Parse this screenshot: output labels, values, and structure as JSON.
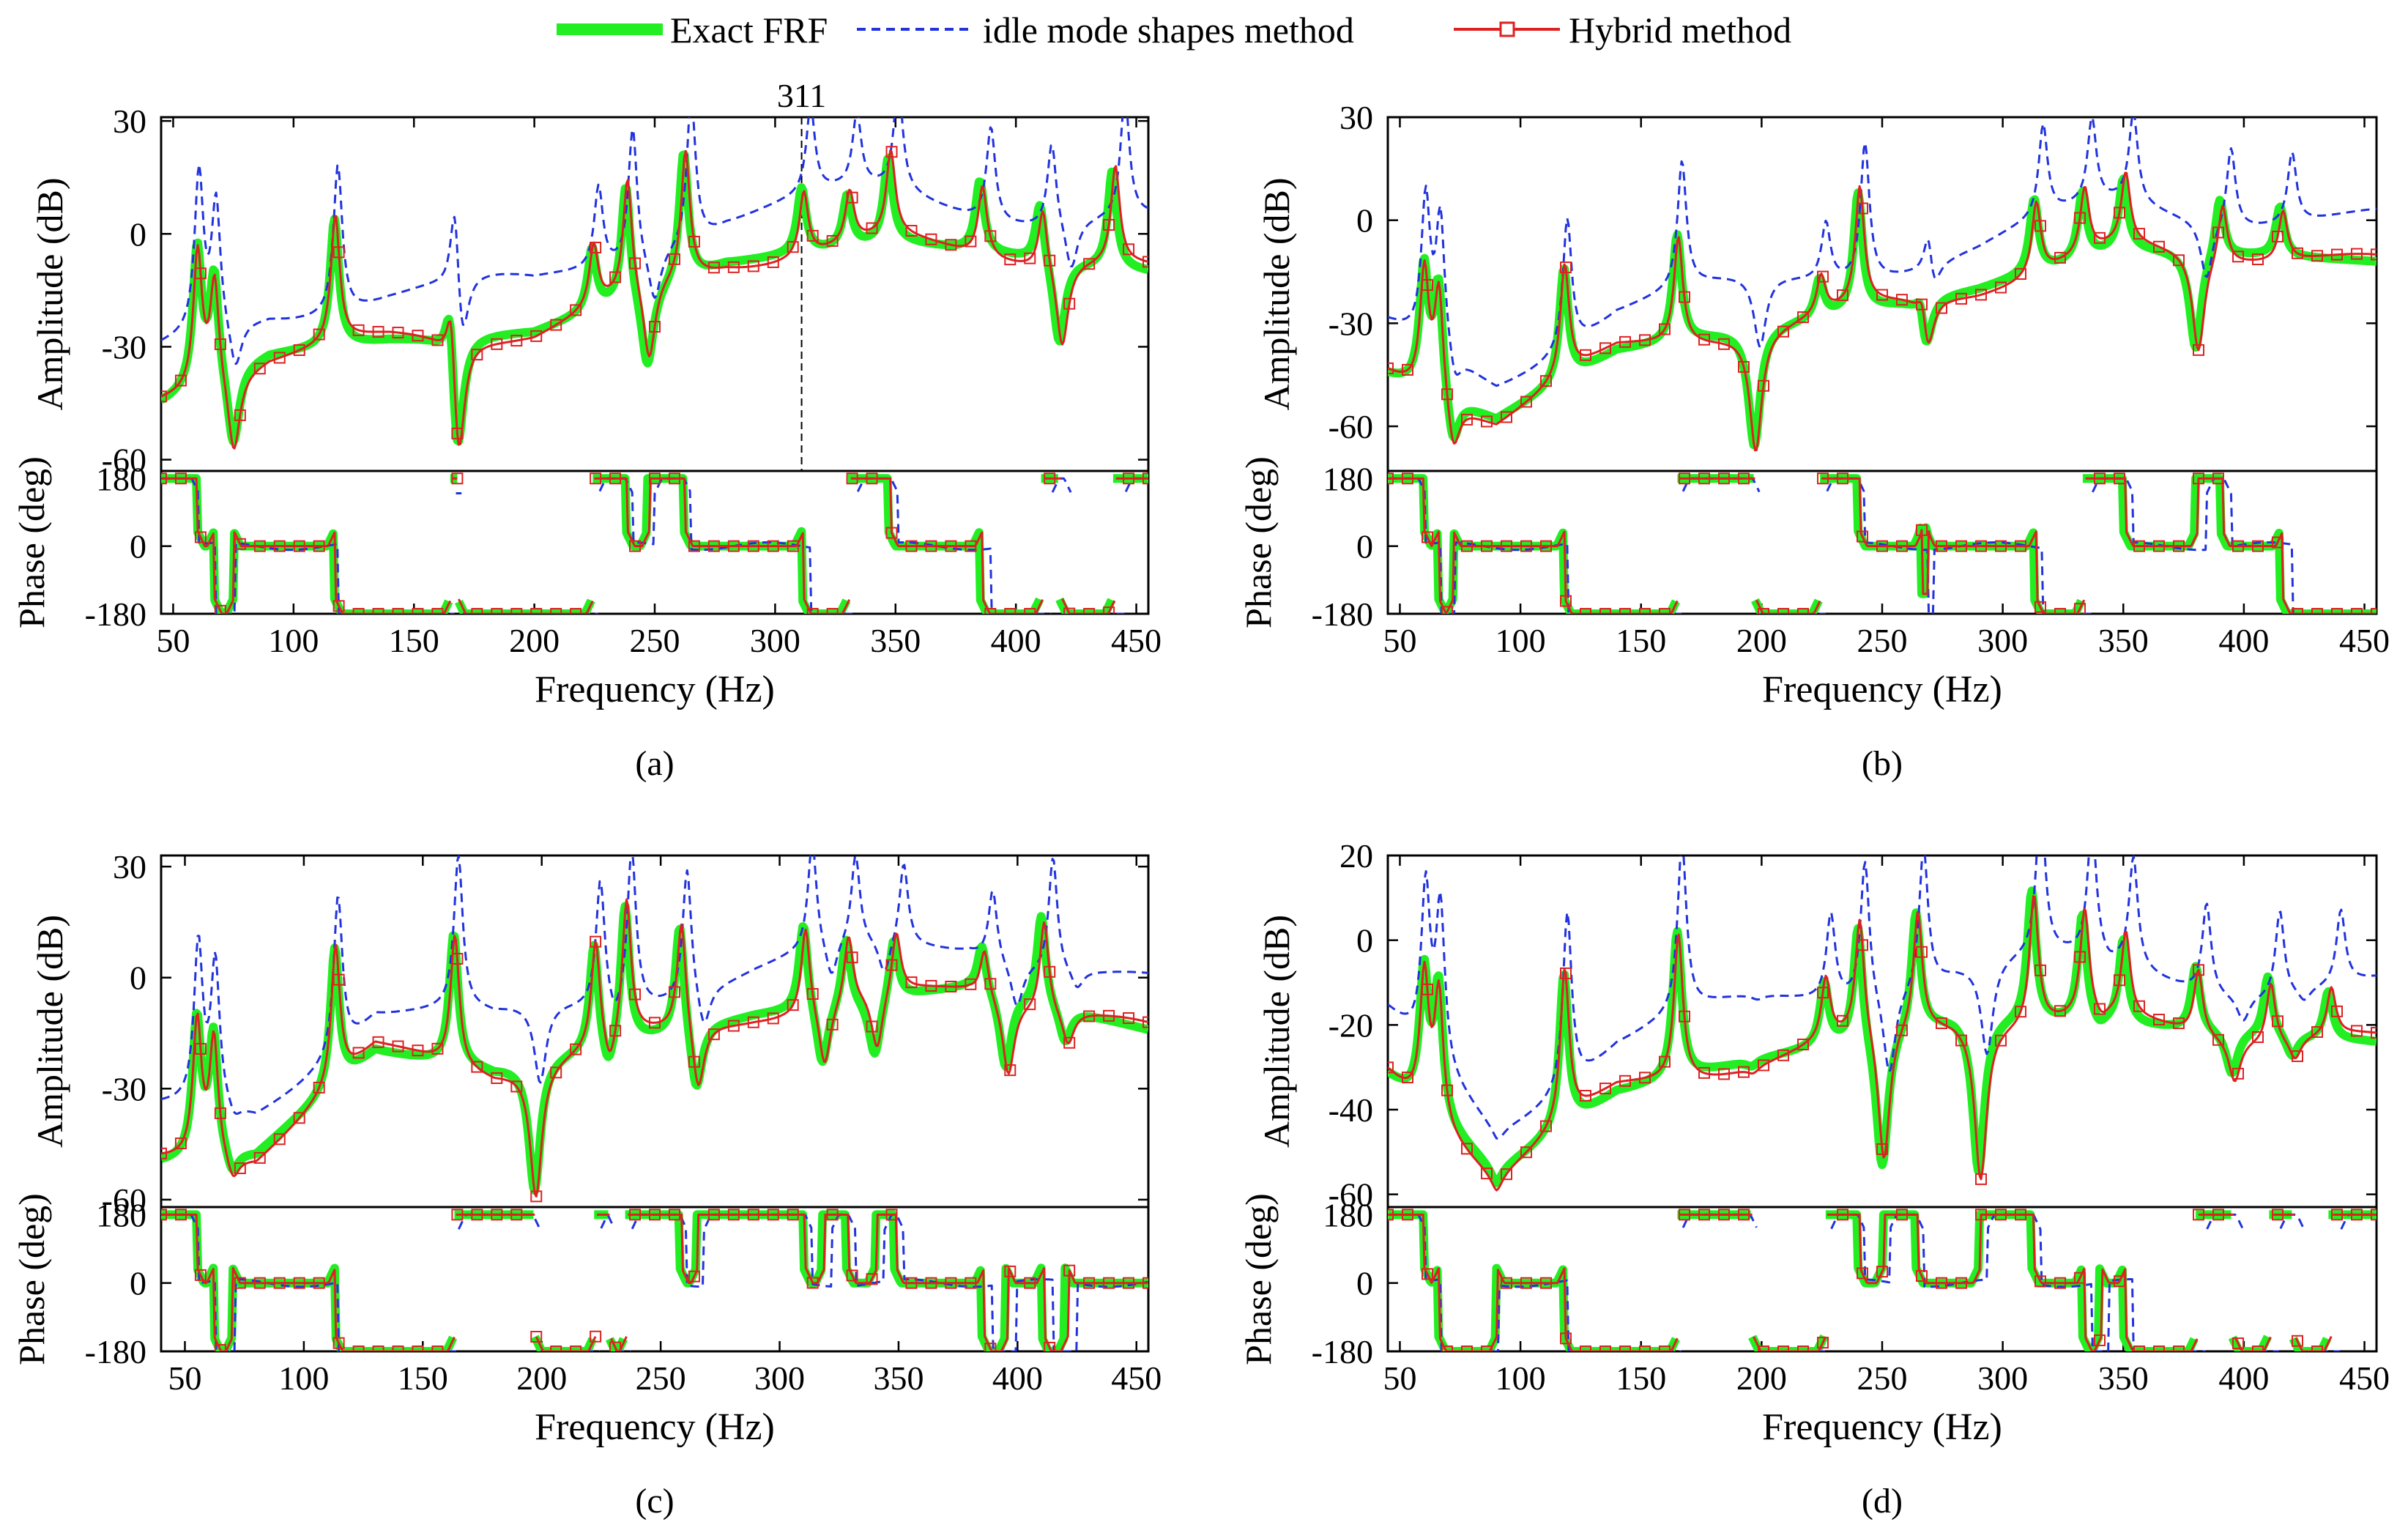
{
  "legend": {
    "entries": [
      {
        "label": "Exact FRF",
        "color": "#22ee22",
        "style": "solid-thick"
      },
      {
        "label": "idle mode shapes method",
        "color": "#2233dd",
        "style": "dashed"
      },
      {
        "label": "Hybrid method",
        "color": "#dd2222",
        "style": "solid-square-markers"
      }
    ]
  },
  "chart_data": [
    {
      "type": "line",
      "panel_label": "(a)",
      "xlabel": "Frequency (Hz)",
      "amp_ylabel": "Amplitude (dB)",
      "phase_ylabel": "Phase (deg)",
      "xlim": [
        45,
        455
      ],
      "x_ticks": [
        50,
        100,
        150,
        200,
        250,
        300,
        350,
        400,
        450
      ],
      "amp_ylim": [
        -63,
        31
      ],
      "amp_ticks": [
        30,
        0,
        -30,
        -60
      ],
      "phase_ylim": [
        -180,
        200
      ],
      "phase_ticks": [
        180,
        0,
        -180
      ],
      "annotation": {
        "x": 311,
        "label": "311"
      },
      "peaks": [
        {
          "f": 60,
          "amp": -4
        },
        {
          "f": 67,
          "amp": -10
        },
        {
          "f": 117,
          "amp": 4
        },
        {
          "f": 165,
          "amp": -7
        },
        {
          "f": 224,
          "amp": -4
        },
        {
          "f": 238,
          "amp": 14
        },
        {
          "f": 262,
          "amp": 22
        },
        {
          "f": 311,
          "amp": 12
        },
        {
          "f": 330,
          "amp": 10
        },
        {
          "f": 347,
          "amp": 20
        },
        {
          "f": 385,
          "amp": 14
        },
        {
          "f": 410,
          "amp": 10
        },
        {
          "f": 440,
          "amp": 17
        }
      ],
      "antiresonances": [
        {
          "f": 75,
          "amp": -58
        },
        {
          "f": 168,
          "amp": -62
        },
        {
          "f": 247,
          "amp": -37
        },
        {
          "f": 418,
          "amp": -30
        }
      ],
      "baseline_db": [
        {
          "f": 45,
          "amp": -45
        },
        {
          "f": 90,
          "amp": -32
        },
        {
          "f": 140,
          "amp": -28
        },
        {
          "f": 200,
          "amp": -26
        },
        {
          "f": 280,
          "amp": -8
        },
        {
          "f": 350,
          "amp": -2
        },
        {
          "f": 455,
          "amp": -10
        }
      ]
    },
    {
      "type": "line",
      "panel_label": "(b)",
      "xlabel": "Frequency (Hz)",
      "amp_ylabel": "Amplitude (dB)",
      "phase_ylabel": "Phase (deg)",
      "xlim": [
        45,
        455
      ],
      "x_ticks": [
        50,
        100,
        150,
        200,
        250,
        300,
        350,
        400,
        450
      ],
      "amp_ylim": [
        -73,
        30
      ],
      "amp_ticks": [
        30,
        0,
        -30,
        -60
      ],
      "phase_ylim": [
        -180,
        200
      ],
      "phase_ticks": [
        180,
        0,
        -180
      ],
      "peaks": [
        {
          "f": 60,
          "amp": -14
        },
        {
          "f": 66,
          "amp": -18
        },
        {
          "f": 118,
          "amp": -14
        },
        {
          "f": 165,
          "amp": -4
        },
        {
          "f": 224,
          "amp": -17
        },
        {
          "f": 240,
          "amp": 8
        },
        {
          "f": 266,
          "amp": -14
        },
        {
          "f": 313,
          "amp": 6
        },
        {
          "f": 333,
          "amp": 8
        },
        {
          "f": 350,
          "amp": 12
        },
        {
          "f": 390,
          "amp": 8
        },
        {
          "f": 415,
          "amp": 4
        }
      ],
      "antiresonances": [
        {
          "f": 72,
          "amp": -68
        },
        {
          "f": 197,
          "amp": -66
        },
        {
          "f": 268,
          "amp": -40
        },
        {
          "f": 380,
          "amp": -38
        }
      ],
      "baseline_db": [
        {
          "f": 45,
          "amp": -45
        },
        {
          "f": 90,
          "amp": -58
        },
        {
          "f": 140,
          "amp": -38
        },
        {
          "f": 210,
          "amp": -30
        },
        {
          "f": 290,
          "amp": -20
        },
        {
          "f": 350,
          "amp": -8
        },
        {
          "f": 455,
          "amp": -12
        }
      ]
    },
    {
      "type": "line",
      "panel_label": "(c)",
      "xlabel": "Frequency (Hz)",
      "amp_ylabel": "Amplitude (dB)",
      "phase_ylabel": "Phase (deg)",
      "xlim": [
        40,
        455
      ],
      "x_ticks": [
        50,
        100,
        150,
        200,
        250,
        300,
        350,
        400,
        450
      ],
      "amp_ylim": [
        -62,
        33
      ],
      "amp_ticks": [
        30,
        0,
        -30,
        -60
      ],
      "phase_ylim": [
        -180,
        200
      ],
      "phase_ticks": [
        180,
        0,
        -180
      ],
      "peaks": [
        {
          "f": 55,
          "amp": -12
        },
        {
          "f": 62,
          "amp": -16
        },
        {
          "f": 113,
          "amp": 8
        },
        {
          "f": 163,
          "amp": 12
        },
        {
          "f": 222,
          "amp": 10
        },
        {
          "f": 235,
          "amp": 20
        },
        {
          "f": 258,
          "amp": 16
        },
        {
          "f": 310,
          "amp": 16
        },
        {
          "f": 328,
          "amp": 12
        },
        {
          "f": 348,
          "amp": 12
        },
        {
          "f": 385,
          "amp": 10
        },
        {
          "f": 410,
          "amp": 18
        }
      ],
      "antiresonances": [
        {
          "f": 70,
          "amp": -55
        },
        {
          "f": 197,
          "amp": -58
        },
        {
          "f": 228,
          "amp": -28
        },
        {
          "f": 265,
          "amp": -32
        },
        {
          "f": 318,
          "amp": -25
        },
        {
          "f": 340,
          "amp": -22
        },
        {
          "f": 395,
          "amp": -25
        },
        {
          "f": 420,
          "amp": -18
        }
      ],
      "baseline_db": [
        {
          "f": 40,
          "amp": -50
        },
        {
          "f": 80,
          "amp": -48
        },
        {
          "f": 130,
          "amp": -20
        },
        {
          "f": 180,
          "amp": -25
        },
        {
          "f": 290,
          "amp": -10
        },
        {
          "f": 380,
          "amp": -2
        },
        {
          "f": 455,
          "amp": -14
        }
      ]
    },
    {
      "type": "line",
      "panel_label": "(d)",
      "xlabel": "Frequency (Hz)",
      "amp_ylabel": "Amplitude (dB)",
      "phase_ylabel": "Phase (deg)",
      "xlim": [
        45,
        455
      ],
      "x_ticks": [
        50,
        100,
        150,
        200,
        250,
        300,
        350,
        400,
        450
      ],
      "amp_ylim": [
        -63,
        20
      ],
      "amp_ticks": [
        20,
        0,
        -20,
        -40,
        -60
      ],
      "phase_ylim": [
        -180,
        200
      ],
      "phase_ticks": [
        180,
        0,
        -180
      ],
      "peaks": [
        {
          "f": 60,
          "amp": -8
        },
        {
          "f": 66,
          "amp": -12
        },
        {
          "f": 118,
          "amp": -8
        },
        {
          "f": 165,
          "amp": 2
        },
        {
          "f": 226,
          "amp": -10
        },
        {
          "f": 240,
          "amp": 5
        },
        {
          "f": 264,
          "amp": 8
        },
        {
          "f": 312,
          "amp": 12
        },
        {
          "f": 333,
          "amp": 6
        },
        {
          "f": 350,
          "amp": 0
        },
        {
          "f": 380,
          "amp": -6
        },
        {
          "f": 410,
          "amp": -8
        },
        {
          "f": 435,
          "amp": -12
        }
      ],
      "antiresonances": [
        {
          "f": 90,
          "amp": -58
        },
        {
          "f": 196,
          "amp": -30
        },
        {
          "f": 250,
          "amp": -55
        },
        {
          "f": 290,
          "amp": -55
        },
        {
          "f": 340,
          "amp": -22
        },
        {
          "f": 395,
          "amp": -32
        },
        {
          "f": 420,
          "amp": -28
        }
      ],
      "baseline_db": [
        {
          "f": 45,
          "amp": -32
        },
        {
          "f": 90,
          "amp": -55
        },
        {
          "f": 140,
          "amp": -36
        },
        {
          "f": 200,
          "amp": -28
        },
        {
          "f": 280,
          "amp": -18
        },
        {
          "f": 350,
          "amp": -20
        },
        {
          "f": 455,
          "amp": -24
        }
      ]
    }
  ]
}
